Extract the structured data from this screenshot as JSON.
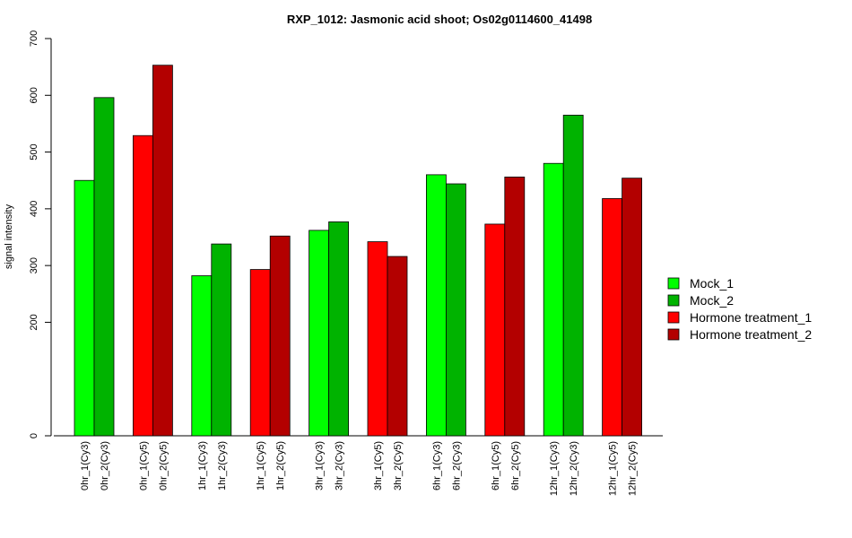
{
  "chart_data": {
    "type": "bar",
    "title": "RXP_1012: Jasmonic acid shoot; Os02g0114600_41498",
    "xlabel": "",
    "ylabel": "signal intensity",
    "ylim": [
      0,
      700
    ],
    "yticks": [
      0,
      200,
      300,
      400,
      500,
      600,
      700
    ],
    "grid": false,
    "legend_position": "right",
    "bars": [
      {
        "label": "0hr_1(Cy3)",
        "value": 450,
        "series": "Mock_1"
      },
      {
        "label": "0hr_2(Cy3)",
        "value": 596,
        "series": "Mock_2"
      },
      {
        "label": "0hr_1(Cy5)",
        "value": 529,
        "series": "Hormone treatment_1"
      },
      {
        "label": "0hr_2(Cy5)",
        "value": 653,
        "series": "Hormone treatment_2"
      },
      {
        "label": "1hr_1(Cy3)",
        "value": 282,
        "series": "Mock_1"
      },
      {
        "label": "1hr_2(Cy3)",
        "value": 338,
        "series": "Mock_2"
      },
      {
        "label": "1hr_1(Cy5)",
        "value": 293,
        "series": "Hormone treatment_1"
      },
      {
        "label": "1hr_2(Cy5)",
        "value": 352,
        "series": "Hormone treatment_2"
      },
      {
        "label": "3hr_1(Cy3)",
        "value": 362,
        "series": "Mock_1"
      },
      {
        "label": "3hr_2(Cy3)",
        "value": 377,
        "series": "Mock_2"
      },
      {
        "label": "3hr_1(Cy5)",
        "value": 342,
        "series": "Hormone treatment_1"
      },
      {
        "label": "3hr_2(Cy5)",
        "value": 316,
        "series": "Hormone treatment_2"
      },
      {
        "label": "6hr_1(Cy3)",
        "value": 460,
        "series": "Mock_1"
      },
      {
        "label": "6hr_2(Cy3)",
        "value": 444,
        "series": "Mock_2"
      },
      {
        "label": "6hr_1(Cy5)",
        "value": 373,
        "series": "Hormone treatment_1"
      },
      {
        "label": "6hr_2(Cy5)",
        "value": 456,
        "series": "Hormone treatment_2"
      },
      {
        "label": "12hr_1(Cy3)",
        "value": 480,
        "series": "Mock_1"
      },
      {
        "label": "12hr_2(Cy3)",
        "value": 565,
        "series": "Mock_2"
      },
      {
        "label": "12hr_1(Cy5)",
        "value": 418,
        "series": "Hormone treatment_1"
      },
      {
        "label": "12hr_2(Cy5)",
        "value": 454,
        "series": "Hormone treatment_2"
      }
    ],
    "legend": [
      {
        "name": "Mock_1",
        "color": "#00ff00"
      },
      {
        "name": "Mock_2",
        "color": "#00b300"
      },
      {
        "name": "Hormone treatment_1",
        "color": "#ff0000"
      },
      {
        "name": "Hormone treatment_2",
        "color": "#b30000"
      }
    ]
  }
}
